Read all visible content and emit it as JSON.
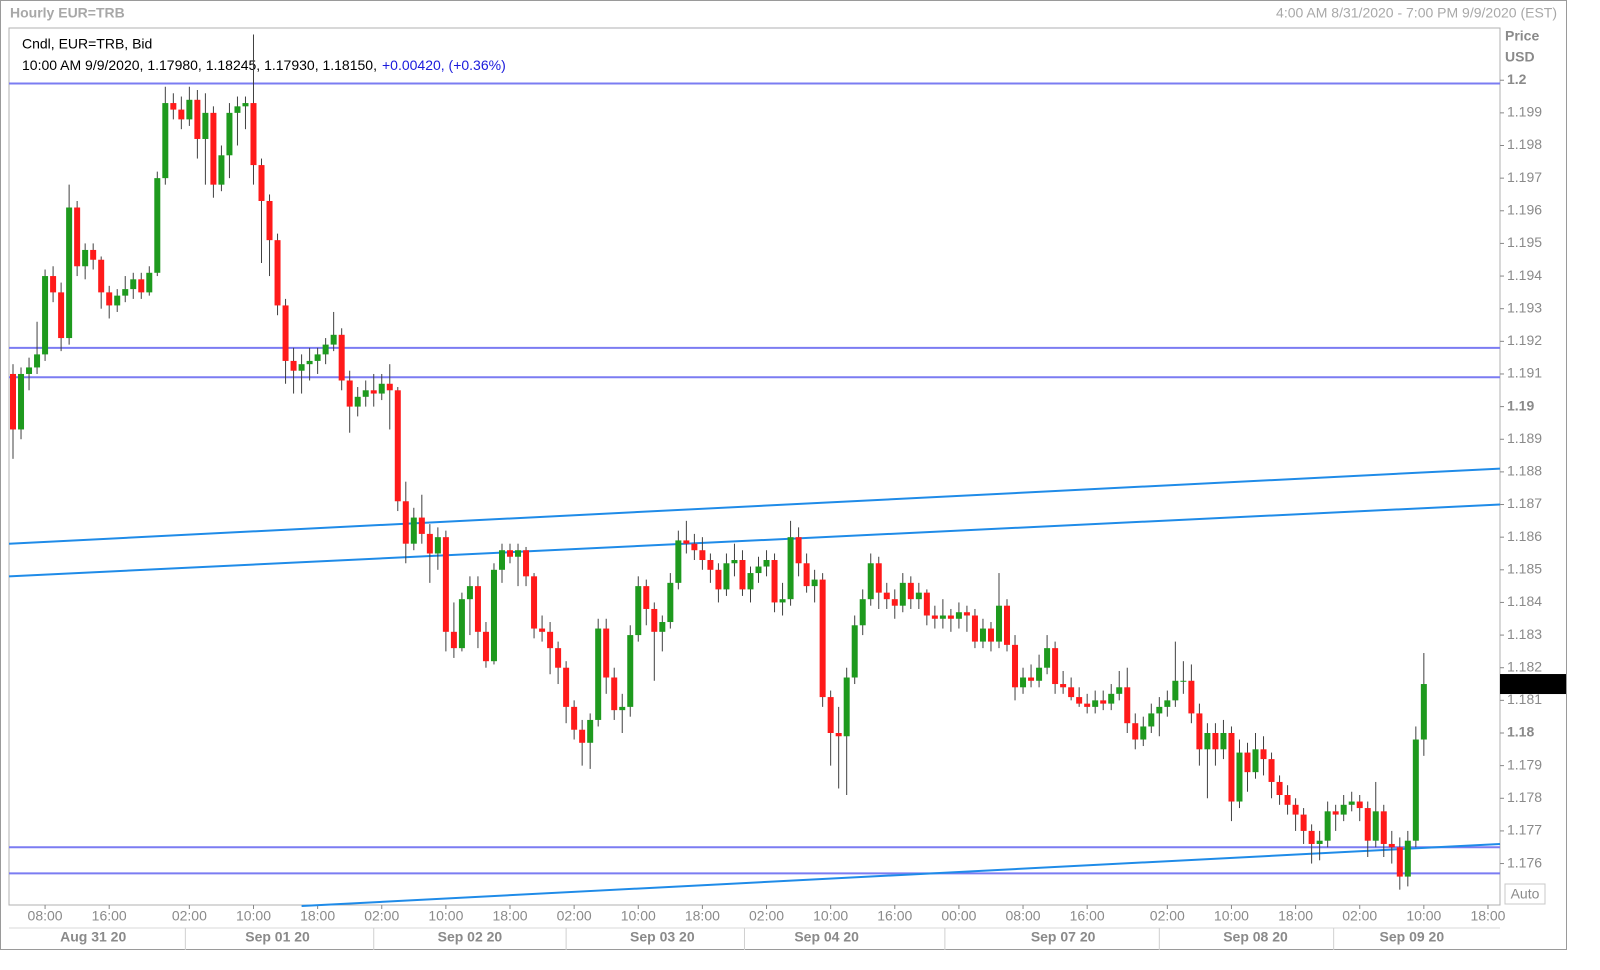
{
  "chart_data": {
    "type": "candlestick",
    "title": "Hourly EUR=TRB",
    "range_label": "4:00 AM 8/31/2020 - 7:00 PM 9/9/2020 (EST)",
    "legend": {
      "title": "Cndl, EUR=TRB, Bid",
      "quote": "10:00 AM 9/9/2020, 1.17980, 1.18245, 1.17930, 1.18150,",
      "change": "+0.00420, (+0.36%)"
    },
    "y_axis_title": [
      "Price",
      "USD"
    ],
    "scale_mode": "Auto",
    "up_color": "#1e9a1e",
    "down_color": "#ff1a1a",
    "wick_color": "#404040",
    "hline_color": "#7b7cf2",
    "trend_color": "#1f8be8",
    "xlim": [
      -0.5,
      185.5
    ],
    "ylim": [
      1.17473,
      1.2016
    ],
    "yticks": [
      1.176,
      1.177,
      1.178,
      1.179,
      1.18,
      1.181,
      1.182,
      1.183,
      1.184,
      1.185,
      1.186,
      1.187,
      1.188,
      1.189,
      1.19,
      1.191,
      1.192,
      1.193,
      1.194,
      1.195,
      1.196,
      1.197,
      1.198,
      1.199,
      1.2
    ],
    "xticks": [
      {
        "value": 4,
        "label": "08:00"
      },
      {
        "value": 12,
        "label": "16:00"
      },
      {
        "value": 22,
        "label": "02:00"
      },
      {
        "value": 30,
        "label": "10:00"
      },
      {
        "value": 38,
        "label": "18:00"
      },
      {
        "value": 46,
        "label": "02:00"
      },
      {
        "value": 54,
        "label": "10:00"
      },
      {
        "value": 62,
        "label": "18:00"
      },
      {
        "value": 70,
        "label": "02:00"
      },
      {
        "value": 78,
        "label": "10:00"
      },
      {
        "value": 86,
        "label": "18:00"
      },
      {
        "value": 94,
        "label": "02:00"
      },
      {
        "value": 102,
        "label": "10:00"
      },
      {
        "value": 110,
        "label": "16:00"
      },
      {
        "value": 118,
        "label": "00:00"
      },
      {
        "value": 126,
        "label": "08:00"
      },
      {
        "value": 134,
        "label": "16:00"
      },
      {
        "value": 144,
        "label": "02:00"
      },
      {
        "value": 152,
        "label": "10:00"
      },
      {
        "value": 160,
        "label": "18:00"
      },
      {
        "value": 168,
        "label": "02:00"
      },
      {
        "value": 176,
        "label": "10:00"
      },
      {
        "value": 184,
        "label": "18:00"
      }
    ],
    "date_labels": [
      {
        "value": 10,
        "label": "Aug 31 20"
      },
      {
        "value": 33,
        "label": "Sep 01 20"
      },
      {
        "value": 57,
        "label": "Sep 02 20"
      },
      {
        "value": 81,
        "label": "Sep 03 20"
      },
      {
        "value": 101.5,
        "label": "Sep 04 20"
      },
      {
        "value": 131,
        "label": "Sep 07 20"
      },
      {
        "value": 155,
        "label": "Sep 08 20"
      },
      {
        "value": 174.5,
        "label": "Sep 09 20"
      }
    ],
    "last_price": {
      "value": 1.1815,
      "label": "1.18150"
    },
    "hlines": [
      1.1999,
      1.1918,
      1.1909,
      1.1765,
      1.1757
    ],
    "trendlines": [
      {
        "x": [
          -0.5,
          185.5
        ],
        "y": [
          1.1858,
          1.1881
        ]
      },
      {
        "x": [
          -0.5,
          185.5
        ],
        "y": [
          1.1848,
          1.187
        ]
      },
      {
        "x": [
          36,
          185.5
        ],
        "y": [
          1.1747,
          1.1766
        ]
      }
    ],
    "ohlc": [
      [
        1.191,
        1.1913,
        1.1884,
        1.1893
      ],
      [
        1.1893,
        1.1912,
        1.189,
        1.191
      ],
      [
        1.191,
        1.1915,
        1.1905,
        1.1912
      ],
      [
        1.1912,
        1.1926,
        1.191,
        1.1916
      ],
      [
        1.1916,
        1.1942,
        1.1914,
        1.194
      ],
      [
        1.194,
        1.1943,
        1.1932,
        1.1935
      ],
      [
        1.1935,
        1.1938,
        1.1917,
        1.1921
      ],
      [
        1.1921,
        1.1968,
        1.1919,
        1.1961
      ],
      [
        1.1961,
        1.1963,
        1.194,
        1.1943
      ],
      [
        1.1943,
        1.195,
        1.1939,
        1.1948
      ],
      [
        1.1948,
        1.195,
        1.1942,
        1.1945
      ],
      [
        1.1945,
        1.1946,
        1.193,
        1.1935
      ],
      [
        1.1935,
        1.1937,
        1.1927,
        1.1931
      ],
      [
        1.1931,
        1.1936,
        1.1929,
        1.1934
      ],
      [
        1.1934,
        1.194,
        1.1932,
        1.1936
      ],
      [
        1.1936,
        1.1941,
        1.1933,
        1.1939
      ],
      [
        1.1939,
        1.1941,
        1.1933,
        1.1935
      ],
      [
        1.1935,
        1.1943,
        1.1934,
        1.1941
      ],
      [
        1.1941,
        1.1972,
        1.194,
        1.197
      ],
      [
        1.197,
        1.1998,
        1.1968,
        1.1993
      ],
      [
        1.1993,
        1.1996,
        1.1988,
        1.1991
      ],
      [
        1.1991,
        1.1995,
        1.1985,
        1.1988
      ],
      [
        1.1988,
        1.1998,
        1.1986,
        1.1994
      ],
      [
        1.1994,
        1.1997,
        1.1976,
        1.1982
      ],
      [
        1.1982,
        1.1996,
        1.1968,
        1.199
      ],
      [
        1.199,
        1.1992,
        1.1964,
        1.1968
      ],
      [
        1.1968,
        1.198,
        1.1966,
        1.1977
      ],
      [
        1.1977,
        1.1993,
        1.197,
        1.199
      ],
      [
        1.199,
        1.1995,
        1.198,
        1.1992
      ],
      [
        1.1992,
        1.1995,
        1.1985,
        1.1993
      ],
      [
        1.1993,
        1.2014,
        1.1968,
        1.1974
      ],
      [
        1.1974,
        1.1976,
        1.1944,
        1.1963
      ],
      [
        1.1963,
        1.1965,
        1.194,
        1.1951
      ],
      [
        1.1951,
        1.1953,
        1.1928,
        1.1931
      ],
      [
        1.1931,
        1.1933,
        1.1907,
        1.1914
      ],
      [
        1.1914,
        1.1918,
        1.1904,
        1.1911
      ],
      [
        1.1911,
        1.1916,
        1.1904,
        1.1913
      ],
      [
        1.1913,
        1.1918,
        1.1908,
        1.1914
      ],
      [
        1.1914,
        1.1918,
        1.191,
        1.1916
      ],
      [
        1.1916,
        1.1921,
        1.1913,
        1.1919
      ],
      [
        1.1919,
        1.1929,
        1.1917,
        1.1922
      ],
      [
        1.1922,
        1.1924,
        1.1905,
        1.1908
      ],
      [
        1.1908,
        1.1911,
        1.1892,
        1.19
      ],
      [
        1.19,
        1.1906,
        1.1897,
        1.1903
      ],
      [
        1.1903,
        1.1908,
        1.19,
        1.1905
      ],
      [
        1.1905,
        1.191,
        1.19,
        1.1904
      ],
      [
        1.1904,
        1.191,
        1.1902,
        1.1907
      ],
      [
        1.1907,
        1.1913,
        1.1893,
        1.1905
      ],
      [
        1.1905,
        1.1906,
        1.1868,
        1.1871
      ],
      [
        1.1871,
        1.1877,
        1.1852,
        1.1858
      ],
      [
        1.1858,
        1.1869,
        1.1856,
        1.1866
      ],
      [
        1.1866,
        1.1873,
        1.1858,
        1.1861
      ],
      [
        1.1861,
        1.1864,
        1.1846,
        1.1855
      ],
      [
        1.1855,
        1.1863,
        1.185,
        1.186
      ],
      [
        1.186,
        1.1862,
        1.1825,
        1.1831
      ],
      [
        1.1831,
        1.184,
        1.1823,
        1.1826
      ],
      [
        1.1826,
        1.1843,
        1.1825,
        1.1841
      ],
      [
        1.1841,
        1.1848,
        1.183,
        1.1845
      ],
      [
        1.1845,
        1.1848,
        1.1826,
        1.1831
      ],
      [
        1.1831,
        1.1834,
        1.182,
        1.1822
      ],
      [
        1.1822,
        1.1852,
        1.1821,
        1.185
      ],
      [
        1.185,
        1.1858,
        1.1846,
        1.1856
      ],
      [
        1.1856,
        1.1858,
        1.1852,
        1.1854
      ],
      [
        1.1854,
        1.1858,
        1.1845,
        1.1856
      ],
      [
        1.1856,
        1.1857,
        1.1845,
        1.1848
      ],
      [
        1.1848,
        1.1849,
        1.1829,
        1.1832
      ],
      [
        1.1832,
        1.1836,
        1.1828,
        1.1831
      ],
      [
        1.1831,
        1.1834,
        1.1818,
        1.1826
      ],
      [
        1.1826,
        1.1828,
        1.1815,
        1.182
      ],
      [
        1.182,
        1.1822,
        1.1803,
        1.1808
      ],
      [
        1.1808,
        1.181,
        1.1798,
        1.1801
      ],
      [
        1.1801,
        1.1804,
        1.179,
        1.1797
      ],
      [
        1.1797,
        1.1806,
        1.1789,
        1.1804
      ],
      [
        1.1804,
        1.1835,
        1.1802,
        1.1832
      ],
      [
        1.1832,
        1.1835,
        1.1812,
        1.1817
      ],
      [
        1.1817,
        1.182,
        1.1804,
        1.1807
      ],
      [
        1.1807,
        1.1812,
        1.18,
        1.1808
      ],
      [
        1.1808,
        1.1833,
        1.1805,
        1.183
      ],
      [
        1.183,
        1.1848,
        1.1828,
        1.1845
      ],
      [
        1.1845,
        1.1847,
        1.1833,
        1.1838
      ],
      [
        1.1838,
        1.184,
        1.1816,
        1.1831
      ],
      [
        1.1831,
        1.1836,
        1.1825,
        1.1834
      ],
      [
        1.1834,
        1.1849,
        1.1832,
        1.1846
      ],
      [
        1.1846,
        1.1862,
        1.1844,
        1.1859
      ],
      [
        1.1859,
        1.1865,
        1.1855,
        1.1858
      ],
      [
        1.1858,
        1.1861,
        1.1853,
        1.1856
      ],
      [
        1.1856,
        1.186,
        1.185,
        1.1853
      ],
      [
        1.1853,
        1.1855,
        1.1846,
        1.185
      ],
      [
        1.185,
        1.1852,
        1.184,
        1.1844
      ],
      [
        1.1844,
        1.1855,
        1.1842,
        1.1852
      ],
      [
        1.1852,
        1.1858,
        1.1848,
        1.1853
      ],
      [
        1.1853,
        1.1856,
        1.1842,
        1.1844
      ],
      [
        1.1844,
        1.1851,
        1.184,
        1.1849
      ],
      [
        1.1849,
        1.1854,
        1.1846,
        1.1851
      ],
      [
        1.1851,
        1.1856,
        1.1848,
        1.1853
      ],
      [
        1.1853,
        1.1855,
        1.1837,
        1.184
      ],
      [
        1.184,
        1.1846,
        1.1836,
        1.1841
      ],
      [
        1.1841,
        1.1865,
        1.1839,
        1.186
      ],
      [
        1.186,
        1.1863,
        1.1848,
        1.1852
      ],
      [
        1.1852,
        1.1855,
        1.1843,
        1.1845
      ],
      [
        1.1845,
        1.185,
        1.184,
        1.1847
      ],
      [
        1.1847,
        1.1849,
        1.1808,
        1.1811
      ],
      [
        1.1811,
        1.1813,
        1.179,
        1.18
      ],
      [
        1.18,
        1.1808,
        1.1783,
        1.1799
      ],
      [
        1.1799,
        1.182,
        1.1781,
        1.1817
      ],
      [
        1.1817,
        1.1836,
        1.1815,
        1.1833
      ],
      [
        1.1833,
        1.1844,
        1.183,
        1.1841
      ],
      [
        1.1841,
        1.1855,
        1.1839,
        1.1852
      ],
      [
        1.1852,
        1.1854,
        1.1838,
        1.1843
      ],
      [
        1.1843,
        1.1846,
        1.1838,
        1.1841
      ],
      [
        1.1841,
        1.1844,
        1.1835,
        1.1839
      ],
      [
        1.1839,
        1.1849,
        1.1837,
        1.1846
      ],
      [
        1.1846,
        1.1848,
        1.1838,
        1.1841
      ],
      [
        1.1841,
        1.1846,
        1.1838,
        1.1843
      ],
      [
        1.1843,
        1.1844,
        1.1833,
        1.1836
      ],
      [
        1.1836,
        1.1839,
        1.1832,
        1.1835
      ],
      [
        1.1835,
        1.1841,
        1.1832,
        1.1836
      ],
      [
        1.1836,
        1.1838,
        1.1831,
        1.1835
      ],
      [
        1.1835,
        1.184,
        1.1832,
        1.1837
      ],
      [
        1.1837,
        1.1839,
        1.1831,
        1.1836
      ],
      [
        1.1836,
        1.1838,
        1.1826,
        1.1828
      ],
      [
        1.1828,
        1.1835,
        1.1826,
        1.1832
      ],
      [
        1.1832,
        1.1834,
        1.1825,
        1.1828
      ],
      [
        1.1828,
        1.1849,
        1.1826,
        1.1839
      ],
      [
        1.1839,
        1.1841,
        1.1825,
        1.1827
      ],
      [
        1.1827,
        1.183,
        1.181,
        1.1814
      ],
      [
        1.1814,
        1.182,
        1.1812,
        1.1817
      ],
      [
        1.1817,
        1.1821,
        1.1814,
        1.1816
      ],
      [
        1.1816,
        1.1824,
        1.1814,
        1.182
      ],
      [
        1.182,
        1.183,
        1.1818,
        1.1826
      ],
      [
        1.1826,
        1.1828,
        1.1812,
        1.1815
      ],
      [
        1.1815,
        1.1819,
        1.1812,
        1.1814
      ],
      [
        1.1814,
        1.1817,
        1.181,
        1.1811
      ],
      [
        1.1811,
        1.1814,
        1.1808,
        1.1809
      ],
      [
        1.1809,
        1.1812,
        1.1806,
        1.1808
      ],
      [
        1.1808,
        1.1813,
        1.1806,
        1.181
      ],
      [
        1.181,
        1.1813,
        1.1807,
        1.1809
      ],
      [
        1.1809,
        1.1815,
        1.1807,
        1.1812
      ],
      [
        1.1812,
        1.1819,
        1.181,
        1.1814
      ],
      [
        1.1814,
        1.182,
        1.18,
        1.1803
      ],
      [
        1.1803,
        1.1806,
        1.1795,
        1.1798
      ],
      [
        1.1798,
        1.1805,
        1.1796,
        1.1802
      ],
      [
        1.1802,
        1.1809,
        1.18,
        1.1806
      ],
      [
        1.1806,
        1.1811,
        1.1799,
        1.1808
      ],
      [
        1.1808,
        1.1813,
        1.1805,
        1.181
      ],
      [
        1.181,
        1.1828,
        1.1808,
        1.1816
      ],
      [
        1.1816,
        1.1822,
        1.1812,
        1.1816
      ],
      [
        1.1816,
        1.1821,
        1.1803,
        1.1806
      ],
      [
        1.1806,
        1.1809,
        1.179,
        1.1795
      ],
      [
        1.1795,
        1.1803,
        1.178,
        1.18
      ],
      [
        1.18,
        1.1803,
        1.179,
        1.1795
      ],
      [
        1.1795,
        1.1804,
        1.1792,
        1.18
      ],
      [
        1.18,
        1.1802,
        1.1773,
        1.1779
      ],
      [
        1.1779,
        1.1798,
        1.1777,
        1.1794
      ],
      [
        1.1794,
        1.1797,
        1.1782,
        1.1788
      ],
      [
        1.1788,
        1.18,
        1.1786,
        1.1795
      ],
      [
        1.1795,
        1.1799,
        1.1787,
        1.1792
      ],
      [
        1.1792,
        1.1794,
        1.178,
        1.1785
      ],
      [
        1.1785,
        1.1787,
        1.1778,
        1.1781
      ],
      [
        1.1781,
        1.1784,
        1.1775,
        1.1778
      ],
      [
        1.1778,
        1.178,
        1.177,
        1.1775
      ],
      [
        1.1775,
        1.1777,
        1.1766,
        1.177
      ],
      [
        1.177,
        1.1772,
        1.176,
        1.1766
      ],
      [
        1.1766,
        1.177,
        1.1761,
        1.1767
      ],
      [
        1.1767,
        1.1779,
        1.1765,
        1.1776
      ],
      [
        1.1776,
        1.1778,
        1.177,
        1.1775
      ],
      [
        1.1775,
        1.1781,
        1.1773,
        1.1778
      ],
      [
        1.1778,
        1.1782,
        1.1776,
        1.1779
      ],
      [
        1.1779,
        1.1781,
        1.1773,
        1.1777
      ],
      [
        1.1777,
        1.1779,
        1.1762,
        1.1767
      ],
      [
        1.1767,
        1.1785,
        1.1765,
        1.1776
      ],
      [
        1.1776,
        1.1778,
        1.1762,
        1.1766
      ],
      [
        1.1766,
        1.177,
        1.176,
        1.1765
      ],
      [
        1.1765,
        1.1768,
        1.1752,
        1.1756
      ],
      [
        1.1756,
        1.177,
        1.1753,
        1.1767
      ],
      [
        1.1767,
        1.1802,
        1.1765,
        1.1798
      ],
      [
        1.1798,
        1.18245,
        1.1793,
        1.1815
      ]
    ]
  }
}
